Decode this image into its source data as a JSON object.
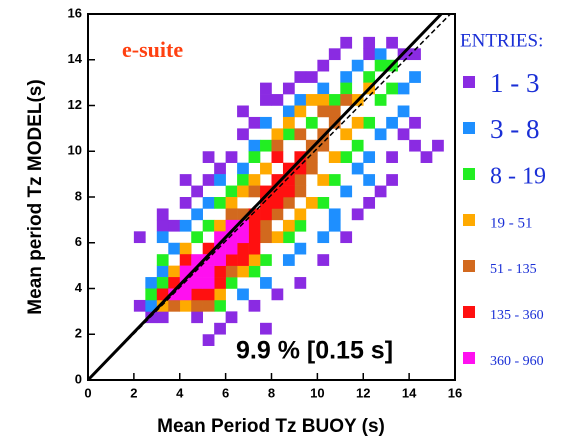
{
  "chart_data": {
    "type": "heatmap",
    "xlabel": "Mean Period Tz BUOY (s)",
    "ylabel": "Mean period Tz MODEL(s)",
    "legend_title": "ENTRIES:",
    "annotations": [
      "e-suite",
      "9.9 % [0.15 s]"
    ],
    "xlim": [
      0,
      16
    ],
    "ylim": [
      0,
      16
    ],
    "xticks": [
      0,
      2,
      4,
      6,
      8,
      10,
      12,
      14,
      16
    ],
    "yticks": [
      0,
      2,
      4,
      6,
      8,
      10,
      12,
      14,
      16
    ],
    "lines": [
      {
        "style": "solid",
        "x": [
          0,
          15.4
        ],
        "y": [
          0,
          16
        ]
      },
      {
        "style": "dashed",
        "x": [
          0,
          15.8
        ],
        "y": [
          0,
          16
        ]
      }
    ],
    "series": [
      {
        "name": "1 - 3",
        "color": "#8a2be2",
        "x": [
          3,
          2.5,
          2,
          3,
          3,
          2,
          3.5,
          4,
          4.5,
          4,
          5,
          5.5,
          5,
          6,
          6.5,
          6.5,
          7,
          7.5,
          7.5,
          8,
          8.5,
          9,
          9.5,
          10,
          10.5,
          11,
          12,
          12,
          13,
          13.5,
          14,
          5.5,
          6,
          7,
          8,
          9,
          10,
          11,
          11.5,
          12,
          12.5,
          13,
          13,
          14,
          14.5,
          14,
          13.5,
          5,
          7.5,
          15,
          4.5
        ],
        "y": [
          2.5,
          2.5,
          3,
          6.5,
          7,
          6,
          6.5,
          7.5,
          8,
          8.5,
          8.5,
          9,
          9.5,
          9.5,
          10.5,
          11.5,
          11,
          12,
          12.5,
          12,
          12.5,
          13,
          13,
          13.5,
          14,
          14.5,
          14.5,
          14,
          14.5,
          14,
          14,
          2,
          2.5,
          3,
          3.5,
          4,
          5,
          6,
          7,
          7.5,
          8,
          8.5,
          9.5,
          10,
          9.5,
          11,
          10.5,
          1.5,
          2,
          10,
          2.5
        ]
      },
      {
        "name": "3 - 8",
        "color": "#1e8fff",
        "x": [
          2.5,
          2.5,
          3,
          3,
          3.5,
          4,
          4.5,
          5,
          5.5,
          6.5,
          7,
          7.5,
          8.5,
          9,
          10,
          11,
          11.5,
          12.5,
          7.5,
          8.5,
          9,
          10,
          10.5,
          11,
          11.5,
          12,
          12.5,
          13,
          13.5,
          13.5,
          14,
          6.5,
          10.5,
          12
        ],
        "y": [
          3,
          4,
          4.5,
          6,
          5.5,
          6.5,
          7,
          7.5,
          8.5,
          9,
          10,
          11,
          11.5,
          12,
          12.5,
          13,
          13.5,
          14,
          4,
          5,
          5.5,
          6,
          7,
          8,
          9,
          9.5,
          10.5,
          11,
          11.5,
          12.5,
          13,
          3.5,
          6.5,
          8.5
        ]
      },
      {
        "name": "8 - 19",
        "color": "#22ee22",
        "x": [
          2.5,
          3,
          3,
          4.5,
          5,
          5.5,
          6,
          6.5,
          7,
          7.5,
          8.5,
          9.5,
          10.5,
          11,
          12,
          12.5,
          6,
          7,
          7.5,
          8.5,
          9,
          10,
          10.5,
          11,
          11.5,
          12,
          12.5,
          13,
          5.5,
          13
        ],
        "y": [
          3.5,
          4,
          5,
          6,
          6.5,
          7.5,
          8,
          8.5,
          9.5,
          10,
          10.5,
          11,
          12,
          12.5,
          13,
          13.5,
          4,
          4.5,
          5,
          6,
          6.5,
          7.5,
          8.5,
          9.5,
          10,
          11,
          12,
          12.5,
          3,
          13.5
        ]
      },
      {
        "name": "19 - 51",
        "color": "#ffaa00",
        "x": [
          3,
          4,
          5.5,
          6.5,
          7,
          8,
          8.5,
          9,
          9.5,
          10,
          10.5,
          11,
          11.5,
          11.5,
          12,
          5.5,
          6,
          6.5,
          7,
          7.5,
          8,
          8.5,
          9.5,
          10,
          3.5,
          4,
          9
        ],
        "y": [
          3,
          3,
          3.5,
          4.5,
          5,
          6,
          6.5,
          7,
          7.5,
          8.5,
          9.5,
          10.5,
          11,
          12,
          12.5,
          6.5,
          7.5,
          8,
          8.5,
          9,
          10.5,
          11,
          12,
          12,
          4.5,
          5.5,
          11.5
        ]
      },
      {
        "name": "51 - 135",
        "color": "#d2691e",
        "x": [
          6,
          7.5,
          7.5,
          8,
          8.5,
          9,
          9,
          9.5,
          9.5,
          9.5,
          10,
          10,
          10.5,
          6.5,
          7,
          8,
          9,
          10,
          10.5,
          11,
          6,
          3.5,
          4.5,
          5
        ],
        "y": [
          4.5,
          6,
          6.5,
          7,
          7.5,
          8,
          8.5,
          9,
          9.5,
          10,
          10,
          10.5,
          11,
          7,
          8,
          10,
          10.5,
          11.5,
          11.5,
          12,
          7,
          3,
          3,
          3
        ]
      },
      {
        "name": "135 - 360",
        "color": "#ff1010",
        "x": [
          3.5,
          3,
          4.5,
          5,
          5.5,
          6,
          6.5,
          7,
          7,
          7,
          7.5,
          7.5,
          8,
          8,
          8,
          8.5,
          8.5,
          8.5,
          9,
          5.5,
          6.5,
          4,
          5,
          7,
          7.5,
          8,
          9
        ],
        "y": [
          4,
          3.5,
          3.5,
          3.5,
          4.5,
          5,
          5.5,
          6,
          6.5,
          7,
          7,
          7.5,
          7.5,
          8,
          8.5,
          8,
          8.5,
          9,
          9,
          4,
          5,
          5,
          5.5,
          5.5,
          8,
          9.5,
          9.5
        ]
      },
      {
        "name": "360 - 960",
        "color": "#ff10f0",
        "x": [
          3.5,
          4,
          4,
          4.5,
          4.5,
          5,
          5,
          5.5,
          5.5,
          6,
          6,
          4,
          5,
          6.5,
          4.5,
          5.5,
          6,
          6.5
        ],
        "y": [
          3.5,
          3.5,
          4,
          4,
          4.5,
          4.5,
          5,
          5,
          5.5,
          5.5,
          6,
          4.5,
          4,
          6,
          5,
          6,
          6.5,
          6.5
        ]
      }
    ]
  }
}
